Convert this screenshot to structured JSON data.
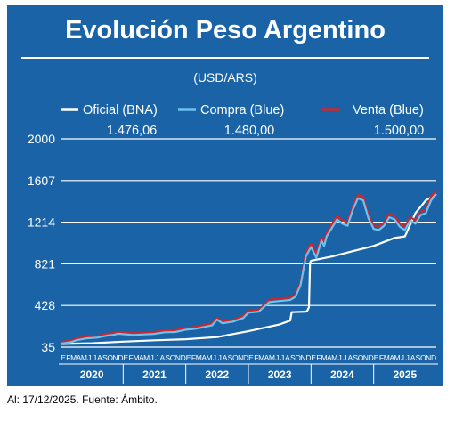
{
  "title": "Evolución Peso Argentino",
  "subtitle": "(USD/ARS)",
  "footer": "Al: 17/12/2025. Fuente: Ámbito.",
  "colors": {
    "background": "#1a63a6",
    "oficial": "#ffffff",
    "compra": "#6ec1ee",
    "venta": "#d0262b",
    "grid": "#ffffff"
  },
  "legend": [
    {
      "key": "oficial",
      "label": "Oficial (BNA)",
      "value": "1.476,06"
    },
    {
      "key": "compra",
      "label": "Compra (Blue)",
      "value": "1.480,00"
    },
    {
      "key": "venta",
      "label": "Venta (Blue)",
      "value": "1.500,00"
    }
  ],
  "chart_data": {
    "type": "line",
    "title": "Evolución Peso Argentino",
    "subtitle": "(USD/ARS)",
    "ylim": [
      35,
      2000
    ],
    "y_ticks": [
      35,
      428,
      821,
      1214,
      1607,
      2000
    ],
    "grid": true,
    "legend_position": "top",
    "x_years": [
      "2020",
      "2021",
      "2022",
      "2023",
      "2024",
      "2025"
    ],
    "x_month_letters": [
      "E",
      "F",
      "M",
      "A",
      "M",
      "J",
      "J",
      "A",
      "S",
      "O",
      "N",
      "D"
    ],
    "x_range": [
      0,
      72
    ],
    "series": [
      {
        "key": "oficial",
        "name": "Oficial (BNA)",
        "points": [
          [
            0,
            65
          ],
          [
            6,
            72
          ],
          [
            12,
            87
          ],
          [
            18,
            100
          ],
          [
            24,
            110
          ],
          [
            30,
            130
          ],
          [
            36,
            185
          ],
          [
            42,
            250
          ],
          [
            44,
            285
          ],
          [
            44.3,
            365
          ],
          [
            47,
            370
          ],
          [
            47.3,
            380
          ],
          [
            47.6,
            410
          ],
          [
            47.8,
            830
          ],
          [
            48,
            850
          ],
          [
            52,
            890
          ],
          [
            56,
            940
          ],
          [
            60,
            990
          ],
          [
            64,
            1065
          ],
          [
            66,
            1080
          ],
          [
            68,
            1300
          ],
          [
            70,
            1420
          ],
          [
            72,
            1476
          ]
        ]
      },
      {
        "key": "compra",
        "name": "Compra (Blue)",
        "points": [
          [
            0,
            68
          ],
          [
            2,
            82
          ],
          [
            3,
            100
          ],
          [
            5,
            118
          ],
          [
            7,
            125
          ],
          [
            9,
            145
          ],
          [
            10,
            150
          ],
          [
            11,
            162
          ],
          [
            12,
            158
          ],
          [
            14,
            150
          ],
          [
            16,
            155
          ],
          [
            18,
            160
          ],
          [
            20,
            175
          ],
          [
            22,
            178
          ],
          [
            24,
            200
          ],
          [
            26,
            210
          ],
          [
            29,
            240
          ],
          [
            30,
            295
          ],
          [
            31,
            260
          ],
          [
            33,
            275
          ],
          [
            35,
            310
          ],
          [
            36,
            360
          ],
          [
            38,
            370
          ],
          [
            40,
            460
          ],
          [
            42,
            470
          ],
          [
            44,
            480
          ],
          [
            45,
            510
          ],
          [
            46,
            620
          ],
          [
            47,
            890
          ],
          [
            48,
            980
          ],
          [
            49,
            880
          ],
          [
            50,
            1040
          ],
          [
            50.5,
            990
          ],
          [
            51,
            1080
          ],
          [
            52,
            1160
          ],
          [
            53,
            1240
          ],
          [
            54,
            1200
          ],
          [
            55,
            1180
          ],
          [
            56,
            1330
          ],
          [
            57,
            1440
          ],
          [
            58,
            1420
          ],
          [
            59,
            1250
          ],
          [
            60,
            1150
          ],
          [
            61,
            1140
          ],
          [
            62,
            1180
          ],
          [
            63,
            1260
          ],
          [
            64,
            1240
          ],
          [
            65,
            1170
          ],
          [
            66,
            1140
          ],
          [
            67,
            1230
          ],
          [
            68,
            1200
          ],
          [
            69,
            1280
          ],
          [
            70,
            1300
          ],
          [
            71,
            1420
          ],
          [
            72,
            1480
          ]
        ]
      },
      {
        "key": "venta",
        "name": "Venta (Blue)",
        "points": [
          [
            0,
            70
          ],
          [
            2,
            84
          ],
          [
            3,
            102
          ],
          [
            5,
            122
          ],
          [
            7,
            130
          ],
          [
            9,
            150
          ],
          [
            10,
            155
          ],
          [
            11,
            166
          ],
          [
            12,
            162
          ],
          [
            14,
            154
          ],
          [
            16,
            159
          ],
          [
            18,
            165
          ],
          [
            20,
            180
          ],
          [
            22,
            183
          ],
          [
            24,
            205
          ],
          [
            26,
            215
          ],
          [
            29,
            245
          ],
          [
            30,
            300
          ],
          [
            31,
            265
          ],
          [
            33,
            280
          ],
          [
            35,
            315
          ],
          [
            36,
            365
          ],
          [
            38,
            375
          ],
          [
            40,
            470
          ],
          [
            42,
            480
          ],
          [
            44,
            490
          ],
          [
            45,
            520
          ],
          [
            46,
            630
          ],
          [
            47,
            910
          ],
          [
            48,
            1000
          ],
          [
            49,
            900
          ],
          [
            50,
            1060
          ],
          [
            50.5,
            1010
          ],
          [
            51,
            1100
          ],
          [
            52,
            1185
          ],
          [
            53,
            1260
          ],
          [
            54,
            1220
          ],
          [
            55,
            1200
          ],
          [
            56,
            1350
          ],
          [
            57,
            1460
          ],
          [
            58,
            1440
          ],
          [
            59,
            1270
          ],
          [
            60,
            1170
          ],
          [
            61,
            1160
          ],
          [
            62,
            1200
          ],
          [
            63,
            1280
          ],
          [
            64,
            1260
          ],
          [
            65,
            1190
          ],
          [
            66,
            1160
          ],
          [
            67,
            1250
          ],
          [
            68,
            1220
          ],
          [
            69,
            1300
          ],
          [
            70,
            1320
          ],
          [
            71,
            1440
          ],
          [
            72,
            1500
          ]
        ]
      }
    ]
  }
}
